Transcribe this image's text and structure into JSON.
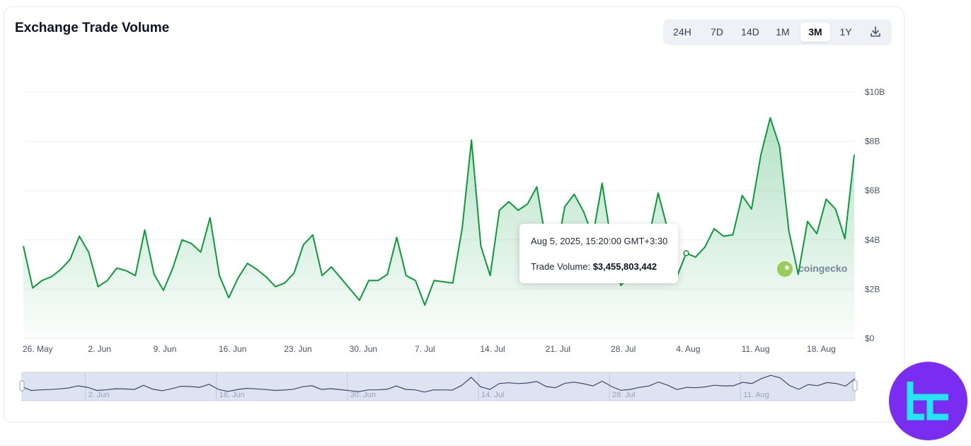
{
  "title": "Exchange Trade Volume",
  "range_buttons": [
    "24H",
    "7D",
    "14D",
    "1M",
    "3M",
    "1Y"
  ],
  "active_range": "3M",
  "icons": {
    "download": "download-icon",
    "watermark": "coingecko-logo",
    "brand": "tc-brand-logo"
  },
  "colors": {
    "line": "#0a9a3a",
    "fill": "#16a34a",
    "navigator_bg": "#dde3f0",
    "navigator_line": "#3b4a6b",
    "brand": "#7a2cf0",
    "brand_accent": "#22e6f2"
  },
  "tooltip": {
    "date": "Aug 5, 2025, 15:20:00 GMT+3:30",
    "label": "Trade Volume:",
    "value": "$3,455,803,442"
  },
  "watermark_text": "coingecko",
  "chart_data": {
    "type": "area",
    "title": "Exchange Trade Volume",
    "y_unit": "USD (billions)",
    "ylim": [
      0,
      10
    ],
    "y_ticks": [
      {
        "value": 0,
        "label": "$0"
      },
      {
        "value": 2,
        "label": "$2B"
      },
      {
        "value": 4,
        "label": "$4B"
      },
      {
        "value": 6,
        "label": "$6B"
      },
      {
        "value": 8,
        "label": "$8B"
      },
      {
        "value": 10,
        "label": "$10B"
      }
    ],
    "x_ticks": [
      {
        "date": "2025-05-26",
        "label": "26. May"
      },
      {
        "date": "2025-06-02",
        "label": "2. Jun"
      },
      {
        "date": "2025-06-09",
        "label": "9. Jun"
      },
      {
        "date": "2025-06-16",
        "label": "16. Jun"
      },
      {
        "date": "2025-06-23",
        "label": "23. Jun"
      },
      {
        "date": "2025-06-30",
        "label": "30. Jun"
      },
      {
        "date": "2025-07-07",
        "label": "7. Jul"
      },
      {
        "date": "2025-07-14",
        "label": "14. Jul"
      },
      {
        "date": "2025-07-21",
        "label": "21. Jul"
      },
      {
        "date": "2025-07-28",
        "label": "28. Jul"
      },
      {
        "date": "2025-08-04",
        "label": "4. Aug"
      },
      {
        "date": "2025-08-11",
        "label": "11. Aug"
      },
      {
        "date": "2025-08-18",
        "label": "18. Aug"
      }
    ],
    "navigator_labels": [
      "2. Jun",
      "16. Jun",
      "30. Jun",
      "14. Jul",
      "28. Jul",
      "11. Aug"
    ],
    "grid": true,
    "series": [
      {
        "values": [
          [
            "2025-05-26",
            3.75
          ],
          [
            "2025-05-27",
            2.05
          ],
          [
            "2025-05-28",
            2.35
          ],
          [
            "2025-05-29",
            2.5
          ],
          [
            "2025-05-30",
            2.8
          ],
          [
            "2025-05-31",
            3.2
          ],
          [
            "2025-06-01",
            4.15
          ],
          [
            "2025-06-02",
            3.5
          ],
          [
            "2025-06-03",
            2.1
          ],
          [
            "2025-06-04",
            2.35
          ],
          [
            "2025-06-05",
            2.85
          ],
          [
            "2025-06-06",
            2.75
          ],
          [
            "2025-06-07",
            2.55
          ],
          [
            "2025-06-08",
            4.4
          ],
          [
            "2025-06-09",
            2.6
          ],
          [
            "2025-06-10",
            1.95
          ],
          [
            "2025-06-11",
            2.85
          ],
          [
            "2025-06-12",
            4.0
          ],
          [
            "2025-06-13",
            3.85
          ],
          [
            "2025-06-14",
            3.5
          ],
          [
            "2025-06-15",
            4.9
          ],
          [
            "2025-06-16",
            2.55
          ],
          [
            "2025-06-17",
            1.65
          ],
          [
            "2025-06-18",
            2.45
          ],
          [
            "2025-06-19",
            3.05
          ],
          [
            "2025-06-20",
            2.8
          ],
          [
            "2025-06-21",
            2.5
          ],
          [
            "2025-06-22",
            2.1
          ],
          [
            "2025-06-23",
            2.25
          ],
          [
            "2025-06-24",
            2.65
          ],
          [
            "2025-06-25",
            3.8
          ],
          [
            "2025-06-26",
            4.2
          ],
          [
            "2025-06-27",
            2.55
          ],
          [
            "2025-06-28",
            2.9
          ],
          [
            "2025-06-29",
            2.45
          ],
          [
            "2025-06-30",
            2.0
          ],
          [
            "2025-07-01",
            1.55
          ],
          [
            "2025-07-02",
            2.35
          ],
          [
            "2025-07-03",
            2.35
          ],
          [
            "2025-07-04",
            2.6
          ],
          [
            "2025-07-05",
            4.1
          ],
          [
            "2025-07-06",
            2.55
          ],
          [
            "2025-07-07",
            2.35
          ],
          [
            "2025-07-08",
            1.35
          ],
          [
            "2025-07-09",
            2.35
          ],
          [
            "2025-07-10",
            2.3
          ],
          [
            "2025-07-11",
            2.25
          ],
          [
            "2025-07-12",
            4.45
          ],
          [
            "2025-07-13",
            8.05
          ],
          [
            "2025-07-14",
            3.75
          ],
          [
            "2025-07-15",
            2.55
          ],
          [
            "2025-07-16",
            5.2
          ],
          [
            "2025-07-17",
            5.55
          ],
          [
            "2025-07-18",
            5.2
          ],
          [
            "2025-07-19",
            5.45
          ],
          [
            "2025-07-20",
            6.15
          ],
          [
            "2025-07-21",
            3.9
          ],
          [
            "2025-07-22",
            3.3
          ],
          [
            "2025-07-23",
            5.35
          ],
          [
            "2025-07-24",
            5.85
          ],
          [
            "2025-07-25",
            5.15
          ],
          [
            "2025-07-26",
            4.15
          ],
          [
            "2025-07-27",
            6.3
          ],
          [
            "2025-07-28",
            3.85
          ],
          [
            "2025-07-29",
            2.15
          ],
          [
            "2025-07-30",
            2.55
          ],
          [
            "2025-07-31",
            3.5
          ],
          [
            "2025-08-01",
            4.1
          ],
          [
            "2025-08-02",
            5.9
          ],
          [
            "2025-08-03",
            4.45
          ],
          [
            "2025-08-04",
            2.5
          ],
          [
            "2025-08-05",
            3.46
          ],
          [
            "2025-08-06",
            3.3
          ],
          [
            "2025-08-07",
            3.7
          ],
          [
            "2025-08-08",
            4.45
          ],
          [
            "2025-08-09",
            4.15
          ],
          [
            "2025-08-10",
            4.2
          ],
          [
            "2025-08-11",
            5.8
          ],
          [
            "2025-08-12",
            5.25
          ],
          [
            "2025-08-13",
            7.45
          ],
          [
            "2025-08-14",
            8.95
          ],
          [
            "2025-08-15",
            7.8
          ],
          [
            "2025-08-16",
            4.35
          ],
          [
            "2025-08-17",
            2.6
          ],
          [
            "2025-08-18",
            4.75
          ],
          [
            "2025-08-19",
            4.25
          ],
          [
            "2025-08-20",
            5.65
          ],
          [
            "2025-08-21",
            5.25
          ],
          [
            "2025-08-22",
            4.05
          ],
          [
            "2025-08-23",
            7.45
          ]
        ]
      }
    ]
  }
}
